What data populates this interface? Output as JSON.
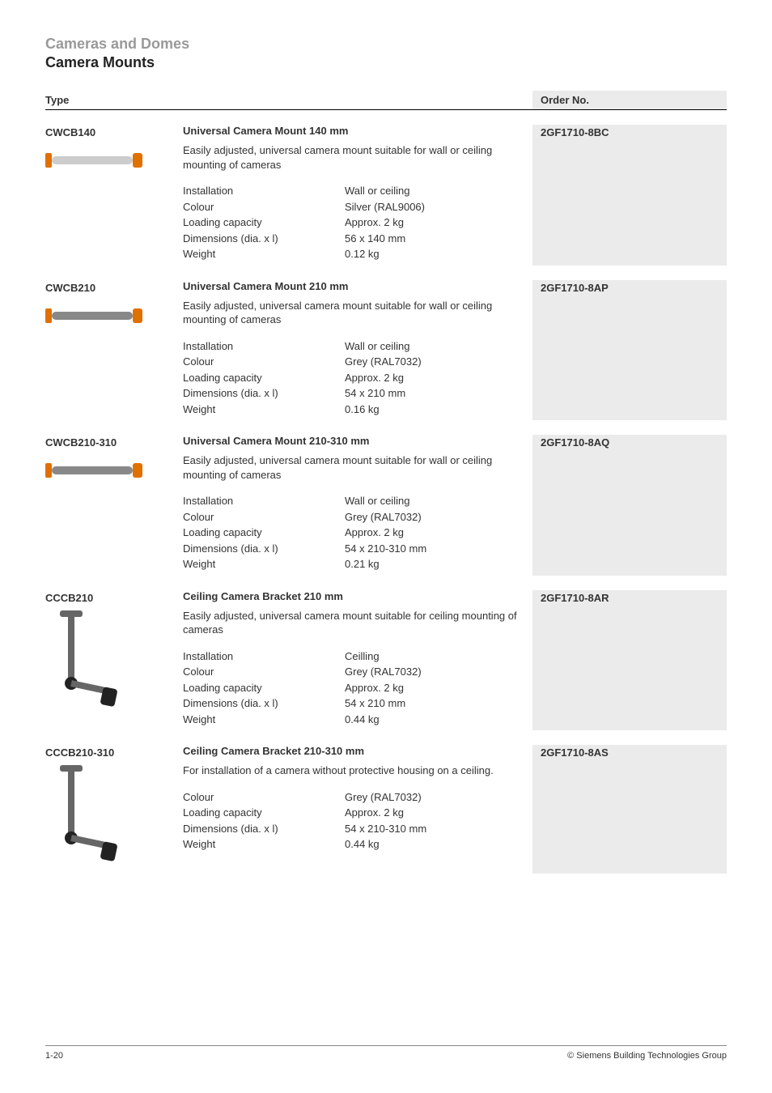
{
  "page": {
    "section": "Cameras and Domes",
    "subsection": "Camera Mounts",
    "header_type": "Type",
    "header_order": "Order No.",
    "footer_left": "1-20",
    "footer_right": "© Siemens Building Technologies Group"
  },
  "colors": {
    "section_title": "#999999",
    "text": "#333333",
    "order_bg": "#ebebeb",
    "rule": "#000000"
  },
  "fonts": {
    "base_size_pt": 10,
    "title_size_pt": 14
  },
  "icons": {
    "wall_mount_silver": {
      "body": "#cccccc",
      "accent": "#e07000"
    },
    "wall_mount_grey": {
      "body": "#888888",
      "accent": "#e07000"
    },
    "ceiling_bracket": {
      "body": "#666666",
      "joint": "#222222"
    }
  },
  "products": [
    {
      "model": "CWCB140",
      "title": "Universal Camera Mount 140 mm",
      "order": "2GF1710-8BC",
      "image_kind": "wall_silver",
      "description": "Easily adjusted, universal camera mount suitable for wall or ceiling mounting of cameras",
      "specs": [
        {
          "label": "Installation",
          "value": "Wall or ceiling"
        },
        {
          "label": "Colour",
          "value": "Silver (RAL9006)"
        },
        {
          "label": "Loading capacity",
          "value": "Approx. 2 kg"
        },
        {
          "label": "Dimensions (dia. x l)",
          "value": "56 x 140 mm"
        },
        {
          "label": "Weight",
          "value": "0.12 kg"
        }
      ]
    },
    {
      "model": "CWCB210",
      "title": "Universal Camera Mount 210 mm",
      "order": "2GF1710-8AP",
      "image_kind": "wall_grey",
      "description": "Easily adjusted, universal camera mount suitable for wall or ceiling mounting of cameras",
      "specs": [
        {
          "label": "Installation",
          "value": "Wall or ceiling"
        },
        {
          "label": "Colour",
          "value": "Grey (RAL7032)"
        },
        {
          "label": "Loading capacity",
          "value": "Approx. 2 kg"
        },
        {
          "label": "Dimensions (dia. x l)",
          "value": "54 x 210 mm"
        },
        {
          "label": "Weight",
          "value": "0.16 kg"
        }
      ]
    },
    {
      "model": "CWCB210-310",
      "title": "Universal Camera Mount 210-310 mm",
      "order": "2GF1710-8AQ",
      "image_kind": "wall_grey",
      "description": "Easily adjusted, universal camera mount suitable for wall or ceiling mounting of cameras",
      "specs": [
        {
          "label": "Installation",
          "value": "Wall or ceiling"
        },
        {
          "label": "Colour",
          "value": "Grey (RAL7032)"
        },
        {
          "label": "Loading capacity",
          "value": "Approx. 2 kg"
        },
        {
          "label": "Dimensions (dia. x l)",
          "value": "54 x 210-310 mm"
        },
        {
          "label": "Weight",
          "value": "0.21 kg"
        }
      ]
    },
    {
      "model": "CCCB210",
      "title": "Ceiling Camera Bracket 210 mm",
      "order": "2GF1710-8AR",
      "image_kind": "ceiling",
      "description": "Easily adjusted, universal camera mount suitable for ceiling mounting of cameras",
      "specs": [
        {
          "label": "Installation",
          "value": "Ceilling"
        },
        {
          "label": "Colour",
          "value": "Grey (RAL7032)"
        },
        {
          "label": "Loading capacity",
          "value": "Approx. 2 kg"
        },
        {
          "label": "Dimensions (dia. x l)",
          "value": "54 x 210 mm"
        },
        {
          "label": "Weight",
          "value": "0.44 kg"
        }
      ]
    },
    {
      "model": "CCCB210-310",
      "title": "Ceiling Camera Bracket 210-310 mm",
      "order": "2GF1710-8AS",
      "image_kind": "ceiling",
      "description": "For installation of a camera without protective housing on a ceiling.",
      "specs": [
        {
          "label": "Colour",
          "value": "Grey (RAL7032)"
        },
        {
          "label": "Loading capacity",
          "value": "Approx. 2 kg"
        },
        {
          "label": "Dimensions (dia. x l)",
          "value": "54 x 210-310 mm"
        },
        {
          "label": "Weight",
          "value": "0.44 kg"
        }
      ]
    }
  ]
}
